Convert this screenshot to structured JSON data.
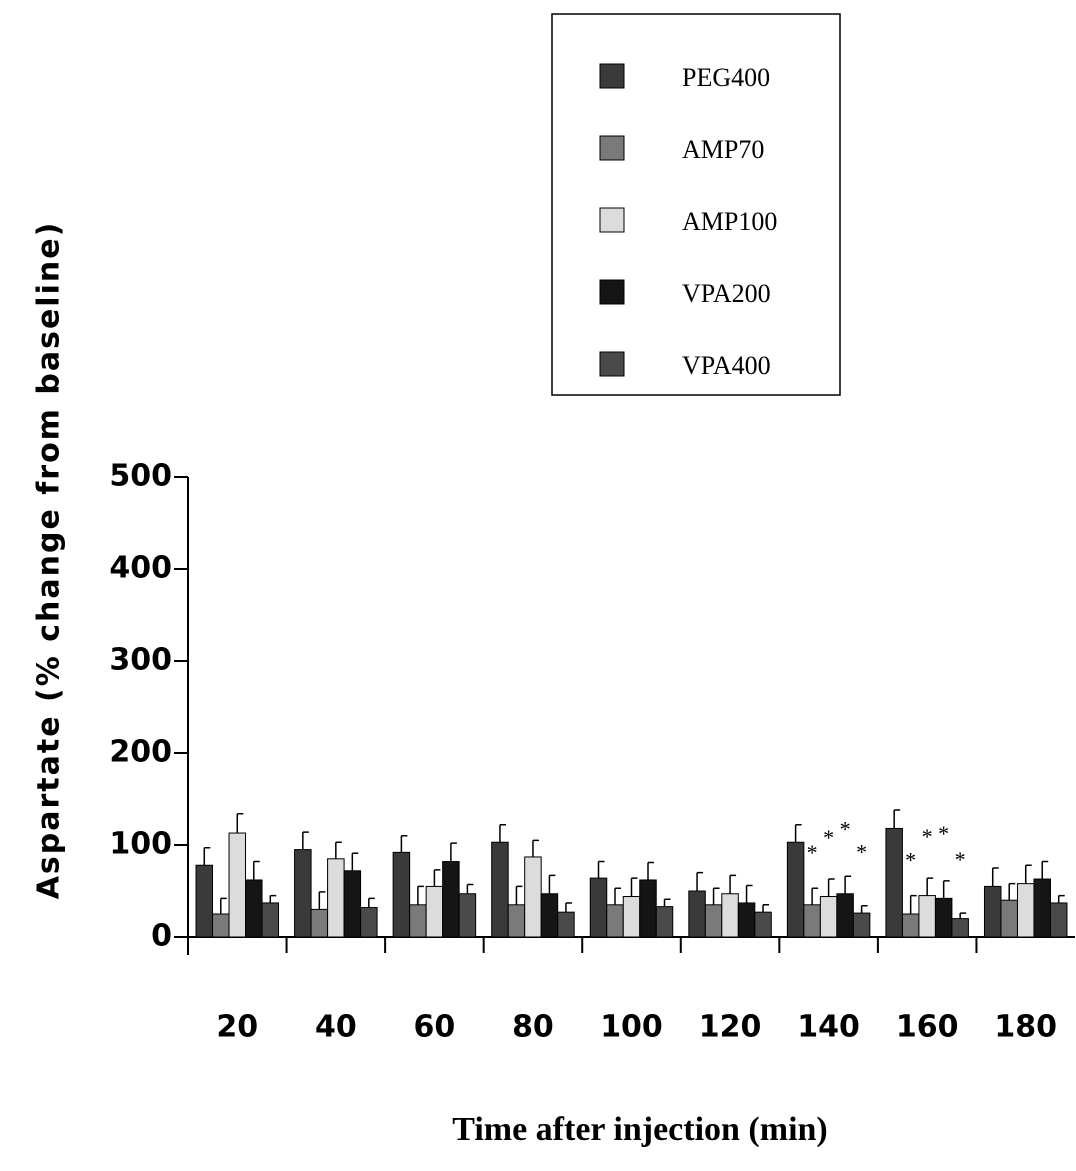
{
  "chart_data": {
    "type": "bar",
    "x_label": "Time after injection (min)",
    "y_label": "Aspartate (% change from baseline)",
    "categories": [
      "20",
      "40",
      "60",
      "80",
      "100",
      "120",
      "140",
      "160",
      "180"
    ],
    "ylim": [
      0,
      500
    ],
    "yticks": [
      0,
      100,
      200,
      300,
      400,
      500
    ],
    "series": [
      {
        "name": "PEG400",
        "color": "#3a3a3a",
        "values": [
          78,
          95,
          92,
          103,
          64,
          50,
          103,
          118,
          55
        ],
        "errors": [
          19,
          19,
          18,
          19,
          18,
          20,
          19,
          20,
          20
        ],
        "markers": [
          null,
          null,
          null,
          null,
          null,
          null,
          null,
          null,
          null
        ]
      },
      {
        "name": "AMP70",
        "color": "#7a7a7a",
        "values": [
          25,
          30,
          35,
          35,
          35,
          35,
          35,
          25,
          40
        ],
        "errors": [
          17,
          19,
          20,
          20,
          18,
          18,
          18,
          20,
          18
        ],
        "markers": [
          null,
          null,
          null,
          null,
          null,
          null,
          "*",
          "*",
          null
        ]
      },
      {
        "name": "AMP100",
        "color": "#dcdcdc",
        "values": [
          113,
          85,
          55,
          87,
          44,
          47,
          44,
          45,
          58
        ],
        "errors": [
          21,
          18,
          18,
          18,
          20,
          20,
          19,
          19,
          20
        ],
        "markers": [
          null,
          null,
          null,
          null,
          null,
          null,
          "*",
          "*",
          null
        ]
      },
      {
        "name": "VPA200",
        "color": "#151515",
        "values": [
          62,
          72,
          82,
          47,
          62,
          37,
          47,
          42,
          63
        ],
        "errors": [
          20,
          19,
          20,
          20,
          19,
          19,
          19,
          19,
          19
        ],
        "markers": [
          null,
          null,
          null,
          null,
          null,
          null,
          "*",
          "*",
          null
        ]
      },
      {
        "name": "VPA400",
        "color": "#4a4a4a",
        "values": [
          37,
          32,
          47,
          27,
          33,
          27,
          26,
          20,
          37
        ],
        "errors": [
          8,
          10,
          10,
          10,
          8,
          8,
          8,
          6,
          8
        ],
        "markers": [
          null,
          null,
          null,
          null,
          null,
          null,
          "*",
          "*",
          null
        ]
      }
    ]
  }
}
